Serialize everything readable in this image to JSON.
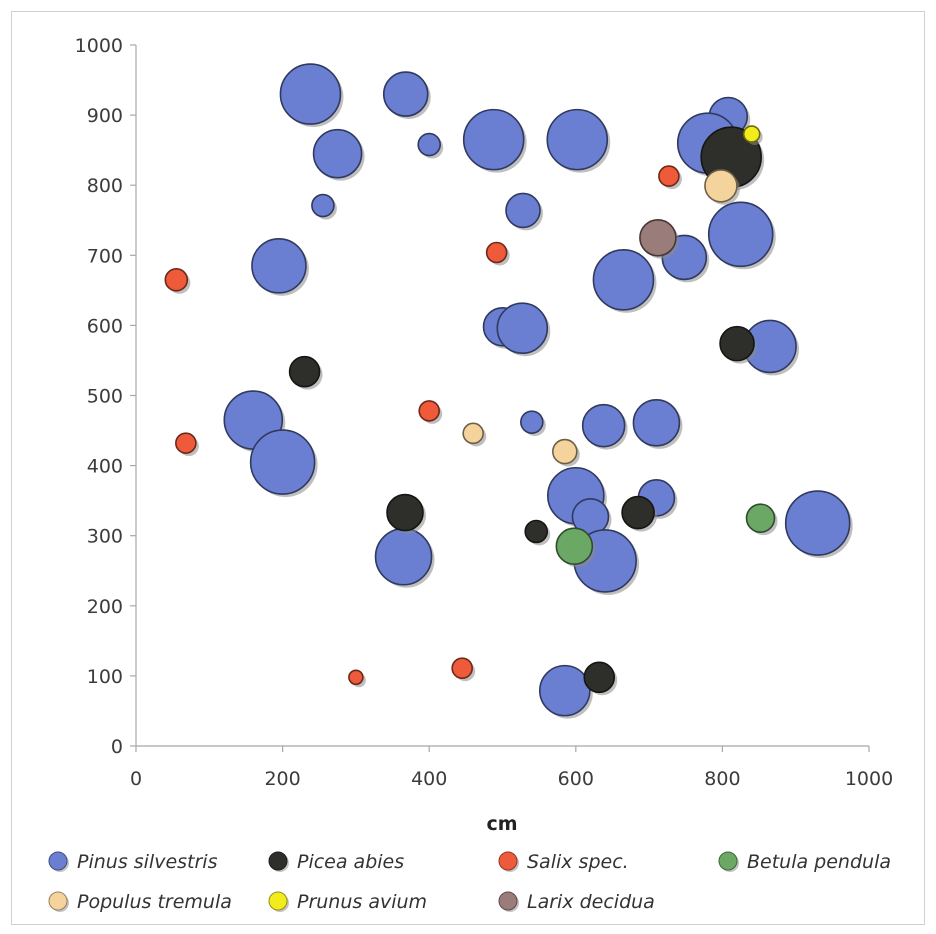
{
  "chart_data": {
    "type": "scatter",
    "variant": "bubble",
    "title": "",
    "xlabel": "cm",
    "ylabel": "",
    "xlim": [
      0,
      1000
    ],
    "ylim": [
      0,
      1000
    ],
    "x_ticks": [
      0,
      200,
      400,
      600,
      800,
      1000
    ],
    "y_ticks": [
      0,
      100,
      200,
      300,
      400,
      500,
      600,
      700,
      800,
      900,
      1000
    ],
    "grid": false,
    "legend_position": "bottom",
    "series": [
      {
        "name": "Pinus silvestris",
        "color": "#6a7fd1",
        "points": [
          {
            "x": 238,
            "y": 930,
            "size": 30
          },
          {
            "x": 368,
            "y": 930,
            "size": 22
          },
          {
            "x": 275,
            "y": 845,
            "size": 24
          },
          {
            "x": 400,
            "y": 858,
            "size": 11
          },
          {
            "x": 488,
            "y": 865,
            "size": 30
          },
          {
            "x": 602,
            "y": 865,
            "size": 30
          },
          {
            "x": 255,
            "y": 771,
            "size": 11
          },
          {
            "x": 528,
            "y": 764,
            "size": 17
          },
          {
            "x": 195,
            "y": 685,
            "size": 27
          },
          {
            "x": 808,
            "y": 898,
            "size": 19
          },
          {
            "x": 780,
            "y": 860,
            "size": 30
          },
          {
            "x": 825,
            "y": 730,
            "size": 32
          },
          {
            "x": 748,
            "y": 697,
            "size": 22
          },
          {
            "x": 665,
            "y": 665,
            "size": 30
          },
          {
            "x": 500,
            "y": 598,
            "size": 19
          },
          {
            "x": 527,
            "y": 596,
            "size": 25
          },
          {
            "x": 865,
            "y": 570,
            "size": 26
          },
          {
            "x": 160,
            "y": 465,
            "size": 29
          },
          {
            "x": 200,
            "y": 405,
            "size": 32
          },
          {
            "x": 540,
            "y": 462,
            "size": 11
          },
          {
            "x": 638,
            "y": 457,
            "size": 21
          },
          {
            "x": 710,
            "y": 461,
            "size": 23
          },
          {
            "x": 600,
            "y": 357,
            "size": 28
          },
          {
            "x": 710,
            "y": 354,
            "size": 18
          },
          {
            "x": 620,
            "y": 327,
            "size": 18
          },
          {
            "x": 640,
            "y": 264,
            "size": 31
          },
          {
            "x": 365,
            "y": 270,
            "size": 28
          },
          {
            "x": 930,
            "y": 318,
            "size": 32
          },
          {
            "x": 585,
            "y": 79,
            "size": 25
          }
        ]
      },
      {
        "name": "Picea abies",
        "color": "#2e2e2a",
        "points": [
          {
            "x": 230,
            "y": 534,
            "size": 15
          },
          {
            "x": 367,
            "y": 333,
            "size": 18
          },
          {
            "x": 546,
            "y": 306,
            "size": 11
          },
          {
            "x": 685,
            "y": 333,
            "size": 16
          },
          {
            "x": 632,
            "y": 98,
            "size": 15
          },
          {
            "x": 820,
            "y": 574,
            "size": 17
          },
          {
            "x": 812,
            "y": 840,
            "size": 30
          }
        ]
      },
      {
        "name": "Salix spec.",
        "color": "#ef5a3a",
        "points": [
          {
            "x": 55,
            "y": 665,
            "size": 11
          },
          {
            "x": 68,
            "y": 432,
            "size": 10
          },
          {
            "x": 300,
            "y": 98,
            "size": 7
          },
          {
            "x": 400,
            "y": 478,
            "size": 10
          },
          {
            "x": 445,
            "y": 111,
            "size": 10
          },
          {
            "x": 492,
            "y": 704,
            "size": 10
          },
          {
            "x": 727,
            "y": 813,
            "size": 10
          }
        ]
      },
      {
        "name": "Betula pendula",
        "color": "#6ba866",
        "points": [
          {
            "x": 598,
            "y": 285,
            "size": 18
          },
          {
            "x": 852,
            "y": 325,
            "size": 14
          }
        ]
      },
      {
        "name": "Populus tremula",
        "color": "#f5d39d",
        "points": [
          {
            "x": 460,
            "y": 446,
            "size": 10
          },
          {
            "x": 585,
            "y": 420,
            "size": 12
          },
          {
            "x": 798,
            "y": 799,
            "size": 16
          }
        ]
      },
      {
        "name": "Prunus avium",
        "color": "#f3ec1c",
        "points": [
          {
            "x": 840,
            "y": 873,
            "size": 8
          }
        ]
      },
      {
        "name": "Larix decidua",
        "color": "#9a7c7a",
        "points": [
          {
            "x": 712,
            "y": 725,
            "size": 18
          }
        ]
      }
    ]
  }
}
